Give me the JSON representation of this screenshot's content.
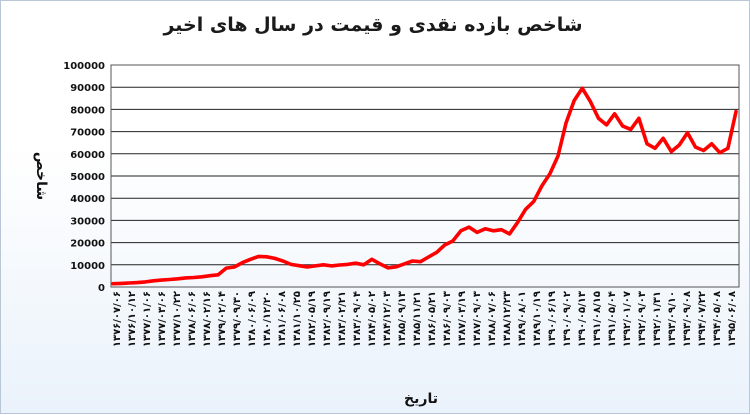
{
  "chart_data": {
    "type": "line",
    "title": "شاخص بازده نقدی و قیمت در سال های اخیر",
    "xlabel": "تاریخ",
    "ylabel": "شاخص",
    "ylim": [
      0,
      100000
    ],
    "yticks": [
      "100000",
      "90000",
      "80000",
      "70000",
      "60000",
      "50000",
      "40000",
      "30000",
      "20000",
      "10000",
      "0"
    ],
    "x_tick_labels": [
      "۱۳۷۶/۰۷/۰۶",
      "۱۳۷۶/۱۰/۱۲",
      "۱۳۷۷/۰۱/۰۶",
      "۱۳۷۷/۰۳/۰۶",
      "۱۳۷۷/۱۰/۲۲",
      "۱۳۷۸/۰۶/۰۶",
      "۱۳۷۸/۰۲/۱۶",
      "۱۳۷۹/۰۲/۰۴",
      "۱۳۷۹/۰۹/۳۰",
      "۱۳۸۰/۰۶/۰۹",
      "۱۳۸۰/۱۲/۲۰",
      "۱۳۸۱/۰۶/۰۸",
      "۱۳۸۱/۱۰/۲۵",
      "۱۳۸۲/۰۵/۱۹",
      "۱۳۸۲/۰۹/۱۹",
      "۱۳۸۳/۰۲/۲۱",
      "۱۳۸۳/۰۹/۰۴",
      "۱۳۸۴/۰۵/۰۲",
      "۱۳۸۴/۱۲/۰۳",
      "۱۳۸۵/۰۹/۱۳",
      "۱۳۸۵/۱۱/۲۱",
      "۱۳۸۶/۰۵/۲۱",
      "۱۳۸۶/۰۹/۰۳",
      "۱۳۸۷/۰۳/۱۹",
      "۱۳۸۷/۰۹/۰۳",
      "۱۳۸۸/۰۷/۰۶",
      "۱۳۸۸/۱۲/۲۳",
      "۱۳۸۹/۰۸/۰۱",
      "۱۳۸۹/۱۰/۱۹",
      "۱۳۹۰/۰۶/۱۹",
      "۱۳۹۰/۰۹/۰۲",
      "۱۳۹۰/۰۵/۱۳",
      "۱۳۹۱/۰۸/۱۵",
      "۱۳۹۱/۰۵/۰۴",
      "۱۳۹۲/۰۱/۰۷",
      "۱۳۹۲/۰۹/۰۳",
      "۱۳۹۲/۰۱/۳۱",
      "۱۳۹۳/۰۹/۱۰",
      "۱۳۹۳/۰۹/۰۸",
      "۱۳۹۴/۰۷/۲۲",
      "۱۳۹۴/۰۵/۰۸",
      "۱۳۹۵/۰۶/۰۸"
    ],
    "grid": true,
    "line_color": "#ff0000",
    "series": [
      {
        "values": [
          1500,
          1600,
          1800,
          2000,
          2300,
          2800,
          3100,
          3400,
          3700,
          4100,
          4300,
          4600,
          5100,
          5500,
          8500,
          9000,
          11000,
          12500,
          13800,
          13600,
          12900,
          11700,
          10200,
          9600,
          9000,
          9500,
          10000,
          9500,
          9900,
          10200,
          10700,
          10000,
          12500,
          10400,
          8600,
          9100,
          10400,
          11700,
          11400,
          13500,
          15600,
          18900,
          20700,
          25300,
          27000,
          24600,
          26200,
          25300,
          25800,
          23900,
          29000,
          35000,
          38500,
          45500,
          51000,
          59000,
          74000,
          84000,
          89500,
          83500,
          76000,
          73000,
          78000,
          72500,
          71000,
          76000,
          64500,
          62500,
          67000,
          61000,
          64000,
          69500,
          63000,
          61500,
          64500,
          60500,
          62500,
          79000
        ]
      }
    ]
  }
}
